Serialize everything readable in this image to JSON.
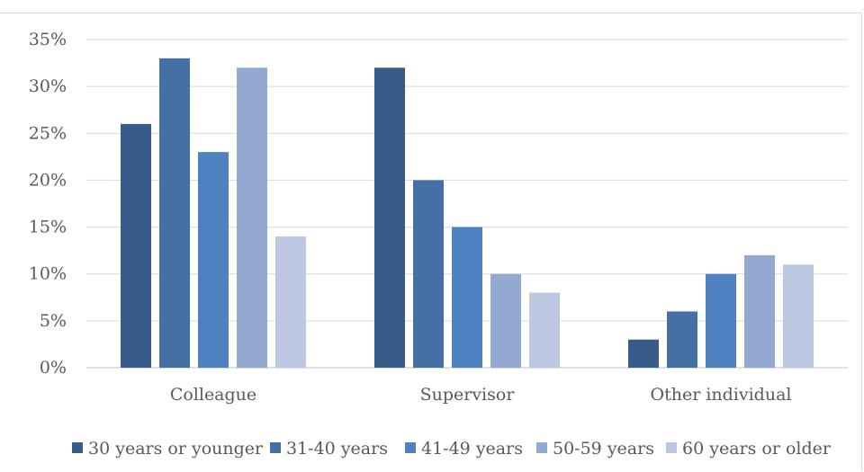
{
  "chart_data": {
    "type": "bar",
    "categories": [
      "Colleague",
      "Supervisor",
      "Other individual"
    ],
    "series": [
      {
        "name": "30 years or younger",
        "values": [
          26,
          32,
          3
        ],
        "color": "#385c8a"
      },
      {
        "name": "31-40 years",
        "values": [
          33,
          20,
          6
        ],
        "color": "#4470a6"
      },
      {
        "name": "41-49 years",
        "values": [
          23,
          15,
          10
        ],
        "color": "#4f82c0"
      },
      {
        "name": "50-59 years",
        "values": [
          32,
          10,
          12
        ],
        "color": "#94a9d1"
      },
      {
        "name": "60 years or older",
        "values": [
          14,
          8,
          11
        ],
        "color": "#bcc7e1"
      }
    ],
    "yticks": [
      "0%",
      "5%",
      "10%",
      "15%",
      "20%",
      "25%",
      "30%",
      "35%"
    ],
    "ylim": [
      0,
      35
    ],
    "grid": true,
    "legend_position": "bottom"
  }
}
